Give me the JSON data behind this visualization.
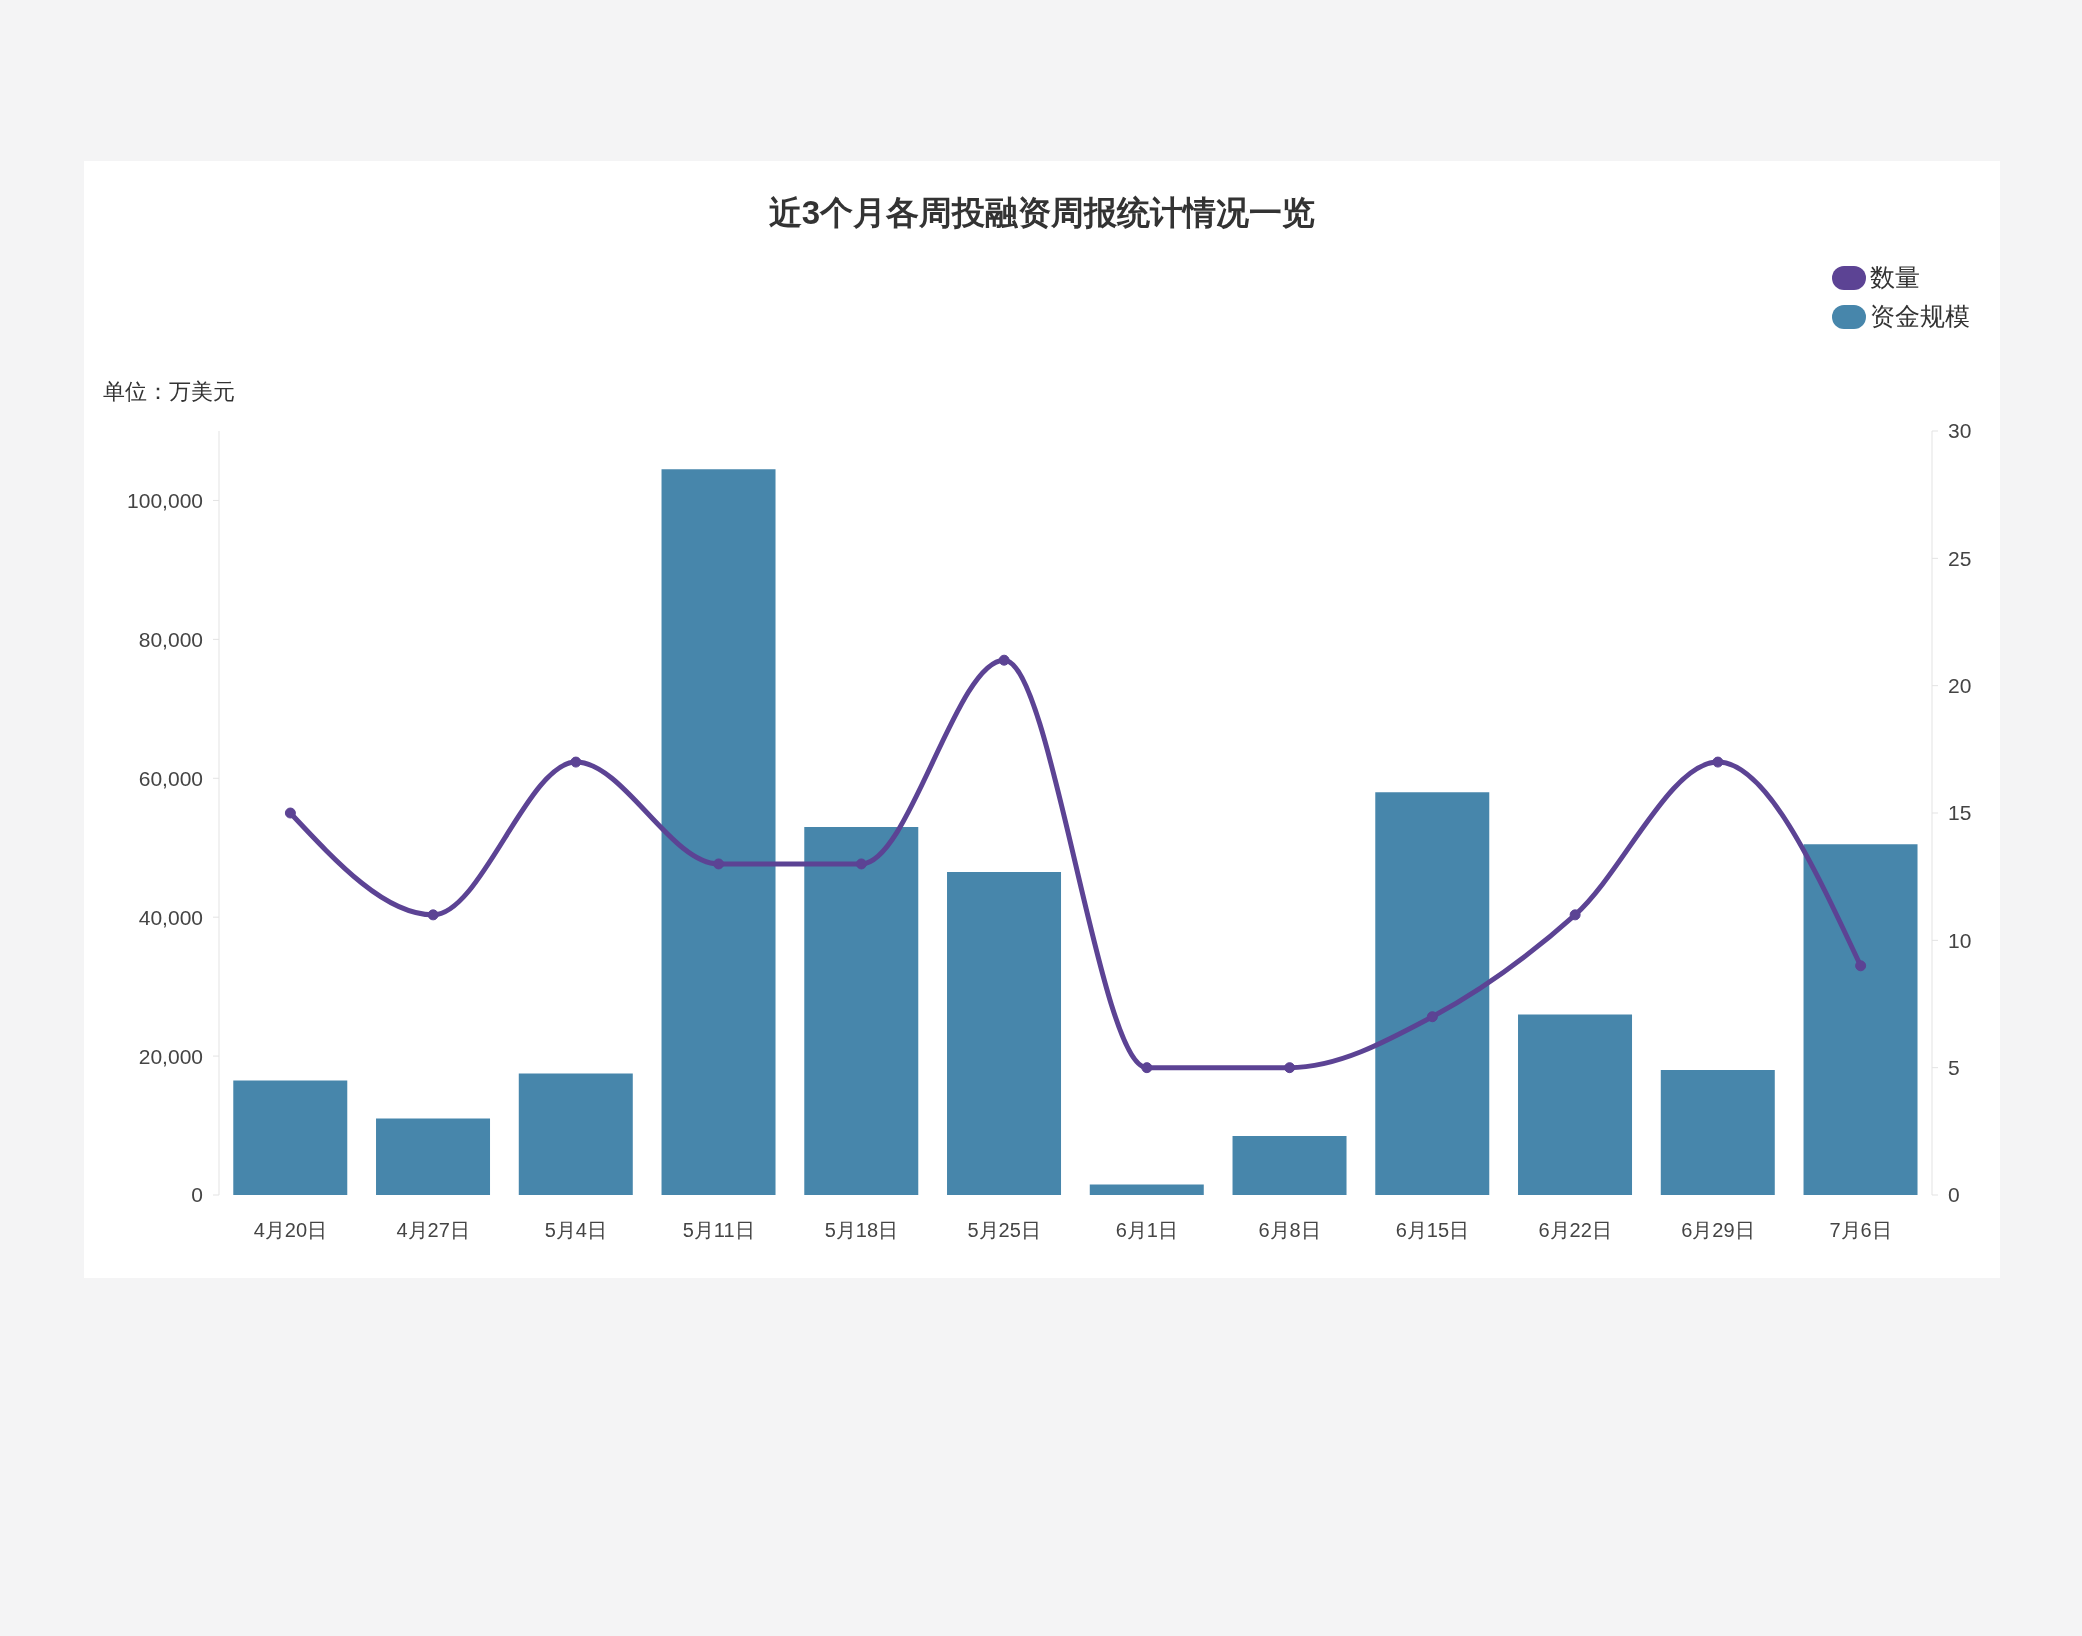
{
  "chart_data": {
    "type": "bar",
    "title": "近3个月各周投融资周报统计情况一览",
    "ylabel": "单位：万美元",
    "categories": [
      "4月20日",
      "4月27日",
      "5月4日",
      "5月11日",
      "5月18日",
      "5月25日",
      "6月1日",
      "6月8日",
      "6月15日",
      "6月22日",
      "6月29日",
      "7月6日"
    ],
    "series": [
      {
        "name": "数量",
        "type": "line",
        "axis": "y2",
        "color": "#5c4394",
        "marker": "circle",
        "values": [
          15,
          11,
          17,
          13,
          13,
          21,
          5,
          5,
          7,
          11,
          17,
          9
        ]
      },
      {
        "name": "资金规模",
        "color": "#4786ab",
        "values": [
          16500,
          11000,
          17500,
          104500,
          53000,
          46500,
          1500,
          8500,
          58000,
          26000,
          18000,
          50500
        ]
      }
    ],
    "ylim": [
      0,
      110000
    ],
    "yticks": [
      0,
      {
        "value": 20000,
        "label": "20,000"
      },
      {
        "value": 40000,
        "label": "40,000"
      },
      {
        "value": 60000,
        "label": "60,000"
      },
      {
        "value": 80000,
        "label": "80,000"
      },
      {
        "value": 100000,
        "label": "100,000"
      }
    ],
    "y2lim": [
      0,
      30
    ],
    "y2ticks": [
      0,
      5,
      10,
      15,
      20,
      25,
      30
    ],
    "legend": "top right"
  }
}
